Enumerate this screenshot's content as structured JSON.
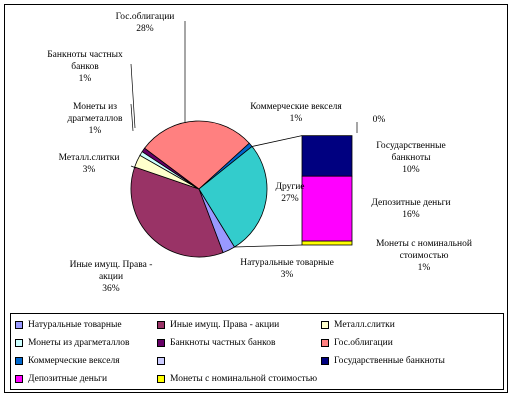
{
  "chart_data": {
    "type": "pie",
    "slices": [
      {
        "name": "Натуральные товарные",
        "value": 3,
        "label": "3%",
        "color": "#9999ff"
      },
      {
        "name": "Иные имущ. Права - акции",
        "value": 36,
        "label": "36%",
        "color": "#993366"
      },
      {
        "name": "Металл.слитки",
        "value": 3,
        "label": "3%",
        "color": "#ffffcc"
      },
      {
        "name": "Монеты из драгметаллов",
        "value": 1,
        "label": "1%",
        "color": "#ccffff"
      },
      {
        "name": "Банкноты частных банков",
        "value": 1,
        "label": "1%",
        "color": "#660066"
      },
      {
        "name": "Гос.облигации",
        "value": 28,
        "label": "28%",
        "color": "#ff8080"
      },
      {
        "name": "Коммерческие векселя",
        "value": 1,
        "label": "1%",
        "color": "#0066cc"
      },
      {
        "name": "Другие",
        "value": 27,
        "label": "27%",
        "color": "#33cccc"
      }
    ],
    "breakdown": [
      {
        "name": "Монеты с номинальной стоимостью",
        "value": 1,
        "label": "1%",
        "color": "#ffff00"
      },
      {
        "name": "Депозитные деньги",
        "value": 16,
        "label": "16%",
        "color": "#ff00ff"
      },
      {
        "name": "Государственные банкноты",
        "value": 10,
        "label": "10%",
        "color": "#000080"
      },
      {
        "name": "",
        "value": 0,
        "label": "0%",
        "color": "#ccccff"
      }
    ],
    "labels": {
      "nat": {
        "lines": [
          "Натуральные товарные"
        ],
        "pct": "3%"
      },
      "inye": {
        "lines": [
          "Иные имущ. Права -",
          "акции"
        ],
        "pct": "36%"
      },
      "metal": {
        "lines": [
          "Металл.слитки"
        ],
        "pct": "3%"
      },
      "monety": {
        "lines": [
          "Монеты из",
          "драгметаллов"
        ],
        "pct": "1%"
      },
      "banknoty": {
        "lines": [
          "Банкноты частных",
          "банков"
        ],
        "pct": "1%"
      },
      "gos": {
        "lines": [
          "Гос.облигации"
        ],
        "pct": "28%"
      },
      "komm": {
        "lines": [
          "Коммерческие векселя"
        ],
        "pct": "1%"
      },
      "drugie": {
        "lines": [
          "Другие"
        ],
        "pct": "27%"
      },
      "zero": {
        "lines": [],
        "pct": "0%"
      },
      "gosbank": {
        "lines": [
          "Государственные",
          "банкноты"
        ],
        "pct": "10%"
      },
      "depo": {
        "lines": [
          "Депозитные деньги"
        ],
        "pct": "16%"
      },
      "monnom": {
        "lines": [
          "Монеты с номинальной",
          "стоимостью"
        ],
        "pct": "1%"
      }
    },
    "legend_position": "bottom"
  },
  "legend": {
    "items": [
      {
        "label": "Натуральные товарные",
        "color": "#9999ff"
      },
      {
        "label": "Иные имущ. Права - акции",
        "color": "#993366"
      },
      {
        "label": "Металл.слитки",
        "color": "#ffffcc"
      },
      {
        "label": "Монеты из драгметаллов",
        "color": "#ccffff"
      },
      {
        "label": "Банкноты частных банков",
        "color": "#660066"
      },
      {
        "label": "Гос.облигации",
        "color": "#ff8080"
      },
      {
        "label": "Коммерческие векселя",
        "color": "#0066cc"
      },
      {
        "label": "",
        "color": "#ccccff"
      },
      {
        "label": "Государственные банкноты",
        "color": "#000080"
      },
      {
        "label": "Депозитные деньги",
        "color": "#ff00ff"
      },
      {
        "label": "Монеты с номинальной стоимостью",
        "color": "#ffff00"
      }
    ]
  }
}
